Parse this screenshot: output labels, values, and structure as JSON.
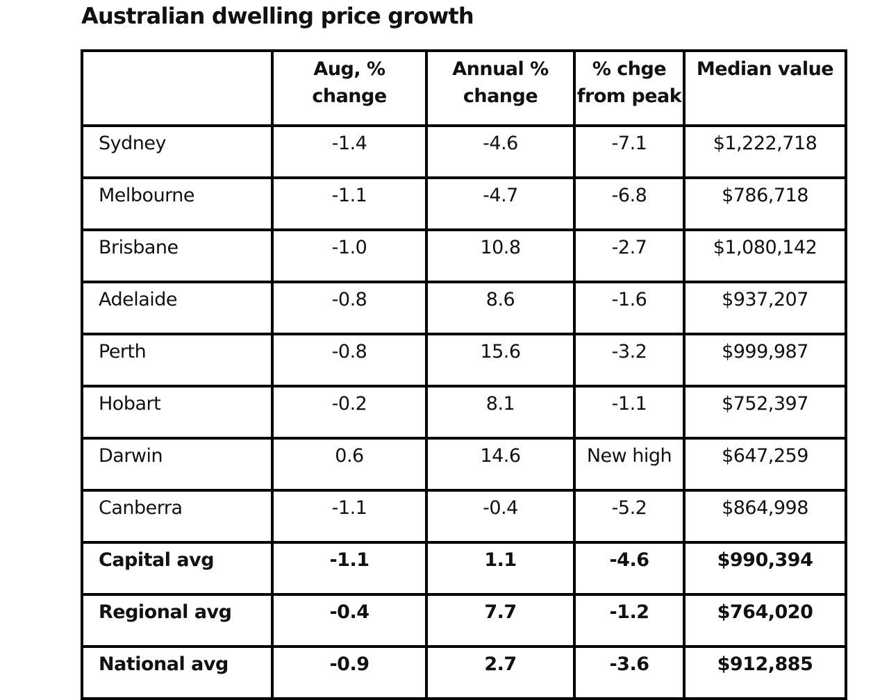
{
  "title": "Australian dwelling price growth",
  "table": {
    "headers": [
      {
        "lines": [
          "",
          ""
        ]
      },
      {
        "lines": [
          "Aug, %",
          "change"
        ]
      },
      {
        "lines": [
          "Annual %",
          "change"
        ]
      },
      {
        "lines": [
          "% chge",
          "from peak"
        ]
      },
      {
        "lines": [
          "Median value",
          ""
        ]
      }
    ],
    "rows": [
      {
        "city": "Sydney",
        "aug_change": "-1.4",
        "annual_change": "-4.6",
        "from_peak": "-7.1",
        "median_value": "$1,222,718"
      },
      {
        "city": "Melbourne",
        "aug_change": "-1.1",
        "annual_change": "-4.7",
        "from_peak": "-6.8",
        "median_value": "$786,718"
      },
      {
        "city": "Brisbane",
        "aug_change": "-1.0",
        "annual_change": "10.8",
        "from_peak": "-2.7",
        "median_value": "$1,080,142"
      },
      {
        "city": "Adelaide",
        "aug_change": "-0.8",
        "annual_change": "8.6",
        "from_peak": "-1.6",
        "median_value": "$937,207"
      },
      {
        "city": "Perth",
        "aug_change": "-0.8",
        "annual_change": "15.6",
        "from_peak": "-3.2",
        "median_value": "$999,987"
      },
      {
        "city": "Hobart",
        "aug_change": "-0.2",
        "annual_change": "8.1",
        "from_peak": "-1.1",
        "median_value": "$752,397"
      },
      {
        "city": "Darwin",
        "aug_change": "0.6",
        "annual_change": "14.6",
        "from_peak": "New high",
        "median_value": "$647,259"
      },
      {
        "city": "Canberra",
        "aug_change": "-1.1",
        "annual_change": "-0.4",
        "from_peak": "-5.2",
        "median_value": "$864,998"
      },
      {
        "city": "Capital avg",
        "aug_change": "-1.1",
        "annual_change": "1.1",
        "from_peak": "-4.6",
        "median_value": "$990,394"
      },
      {
        "city": "Regional avg",
        "aug_change": "-0.4",
        "annual_change": "7.7",
        "from_peak": "-1.2",
        "median_value": "$764,020"
      },
      {
        "city": "National avg",
        "aug_change": "-0.9",
        "annual_change": "2.7",
        "from_peak": "-3.6",
        "median_value": "$912,885"
      }
    ]
  }
}
